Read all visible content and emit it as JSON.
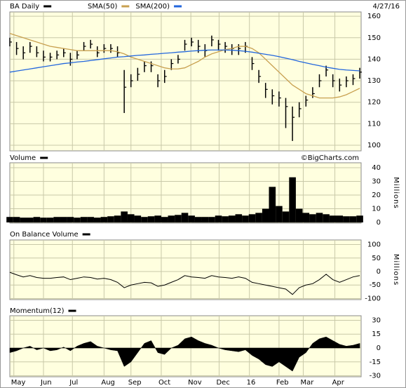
{
  "chart_data": [
    {
      "type": "ohlc",
      "title": "BA Daily",
      "date": "4/27/16",
      "x": [
        0,
        1,
        2,
        3,
        4,
        5,
        6,
        7,
        8,
        9,
        10,
        11,
        12,
        13,
        14,
        15,
        16,
        17,
        18,
        19,
        20,
        21,
        22,
        23,
        24,
        25,
        26,
        27,
        28,
        29,
        30,
        31,
        32,
        33,
        34,
        35,
        36,
        37,
        38,
        39,
        40,
        41,
        42,
        43,
        44,
        45,
        46,
        47,
        48,
        49,
        50,
        51,
        52
      ],
      "price": {
        "color": "#000000",
        "high": [
          150,
          148,
          146,
          148,
          146,
          144,
          143,
          144,
          145,
          143,
          144,
          148,
          149,
          146,
          147,
          147,
          146,
          135,
          133,
          136,
          139,
          139,
          133,
          135,
          140,
          142,
          149,
          150,
          149,
          147,
          151,
          149,
          148,
          147,
          147,
          148,
          141,
          135,
          129,
          126,
          125,
          122,
          118,
          120,
          123,
          127,
          133,
          137,
          133,
          131,
          132,
          133,
          136
        ],
        "low": [
          146,
          142,
          140,
          143,
          141,
          139,
          139,
          140,
          141,
          137,
          140,
          144,
          145,
          141,
          143,
          143,
          141,
          115,
          127,
          130,
          134,
          134,
          127,
          129,
          135,
          138,
          144,
          146,
          143,
          141,
          146,
          144,
          143,
          142,
          142,
          143,
          135,
          129,
          122,
          119,
          118,
          108,
          102,
          113,
          118,
          122,
          127,
          132,
          127,
          125,
          127,
          128,
          131
        ],
        "close": [
          148,
          145,
          143,
          146,
          143,
          141,
          141,
          142,
          143,
          140,
          142,
          146,
          147,
          143,
          145,
          145,
          143,
          127,
          130,
          133,
          137,
          137,
          130,
          132,
          138,
          140,
          147,
          148,
          146,
          144,
          149,
          147,
          146,
          145,
          145,
          146,
          138,
          132,
          126,
          123,
          122,
          118,
          113,
          117,
          121,
          124,
          130,
          135,
          130,
          128,
          130,
          131,
          134
        ]
      },
      "series": [
        {
          "name": "SMA(50)",
          "color": "#c8a050",
          "values": [
            152,
            151,
            150,
            149,
            148,
            147,
            146,
            145.5,
            145,
            144.5,
            144,
            144,
            144,
            144,
            144,
            144,
            143.5,
            142.5,
            141,
            140,
            139,
            138,
            137,
            136,
            135.5,
            135.5,
            136,
            137.5,
            139,
            141,
            142.5,
            143.5,
            144.5,
            145,
            146,
            146,
            145,
            143,
            140,
            137,
            134,
            131,
            128,
            126,
            124,
            123,
            122,
            122,
            122,
            122.5,
            123.5,
            125,
            126.5
          ]
        },
        {
          "name": "SMA(200)",
          "color": "#2266dd",
          "values": [
            134,
            134.5,
            135,
            135.5,
            136,
            136.5,
            137,
            137.5,
            138,
            138.3,
            138.7,
            139,
            139.4,
            139.8,
            140.2,
            140.6,
            141,
            141.2,
            141.5,
            141.8,
            142,
            142.3,
            142.5,
            142.8,
            143,
            143.3,
            143.5,
            143.8,
            144,
            144.2,
            144.3,
            144.3,
            144.3,
            144.2,
            144,
            143.7,
            143.3,
            142.8,
            142.3,
            141.8,
            141.2,
            140.5,
            139.8,
            139,
            138.3,
            137.6,
            137,
            136.3,
            135.8,
            135.3,
            135,
            134.8,
            134.6
          ]
        }
      ],
      "ylim": [
        97.4,
        162
      ],
      "yticks": [
        100,
        110,
        120,
        130,
        140,
        150,
        160
      ],
      "grid": true
    },
    {
      "type": "bar",
      "title": "Volume",
      "annotation": "©BigCharts.com",
      "ylabel": "Millions",
      "color": "#000000",
      "values": [
        4,
        4,
        3.5,
        3.5,
        4,
        3.5,
        3.5,
        4,
        4,
        4,
        3.5,
        4,
        4,
        3.5,
        4,
        4.5,
        5,
        8,
        6,
        5,
        4,
        4.5,
        5,
        4,
        5,
        5.5,
        7,
        5,
        4,
        4,
        4,
        5,
        4.5,
        5,
        6,
        5,
        6,
        7,
        10,
        26,
        12,
        8,
        33,
        10,
        7,
        6,
        7,
        6,
        5,
        5,
        4.5,
        4.5,
        5
      ],
      "ylim": [
        -0.5,
        43.6
      ],
      "yticks": [
        0,
        10,
        20,
        30,
        40
      ],
      "grid": true
    },
    {
      "type": "line",
      "title": "On Balance Volume",
      "ylabel": "Millions",
      "color": "#000000",
      "values": [
        -3,
        -12,
        -20,
        -15,
        -22,
        -25,
        -25,
        -22,
        -20,
        -30,
        -25,
        -20,
        -22,
        -28,
        -25,
        -30,
        -40,
        -60,
        -50,
        -45,
        -40,
        -42,
        -55,
        -50,
        -40,
        -30,
        -15,
        -20,
        -22,
        -25,
        -15,
        -20,
        -22,
        -25,
        -20,
        -25,
        -40,
        -45,
        -50,
        -55,
        -60,
        -65,
        -85,
        -60,
        -50,
        -45,
        -30,
        -10,
        -30,
        -40,
        -30,
        -20,
        -15
      ],
      "ylim": [
        -104,
        117
      ],
      "yticks": [
        -100,
        -50,
        0,
        50,
        100
      ],
      "grid": true
    },
    {
      "type": "area",
      "title": "Momentum(12)",
      "color": "#000000",
      "values": [
        -5,
        -3,
        0,
        2,
        -2,
        0,
        -3,
        -2,
        1,
        -3,
        2,
        5,
        7,
        2,
        0,
        -2,
        -3,
        -20,
        -15,
        -5,
        5,
        8,
        -5,
        -7,
        0,
        3,
        10,
        12,
        8,
        5,
        3,
        0,
        -2,
        -3,
        -4,
        -2,
        -8,
        -12,
        -18,
        -20,
        -15,
        -20,
        -25,
        -10,
        -5,
        5,
        10,
        12,
        8,
        4,
        2,
        3,
        5
      ],
      "ylim": [
        -31.1,
        34.9
      ],
      "yticks": [
        -30,
        -15,
        0,
        15,
        30
      ],
      "grid": true,
      "xlim": [
        0,
        52.2
      ],
      "xticks": [
        {
          "value": 0.6,
          "label": "May"
        },
        {
          "value": 5,
          "label": "Jun"
        },
        {
          "value": 9.3,
          "label": "Jul"
        },
        {
          "value": 14,
          "label": "Aug"
        },
        {
          "value": 18,
          "label": "Sep"
        },
        {
          "value": 22.5,
          "label": "Oct"
        },
        {
          "value": 26.9,
          "label": "Nov"
        },
        {
          "value": 31.1,
          "label": "Dec"
        },
        {
          "value": 35.6,
          "label": "16"
        },
        {
          "value": 40,
          "label": "Feb"
        },
        {
          "value": 43.6,
          "label": "Mar"
        },
        {
          "value": 48.3,
          "label": "Apr"
        }
      ]
    }
  ]
}
